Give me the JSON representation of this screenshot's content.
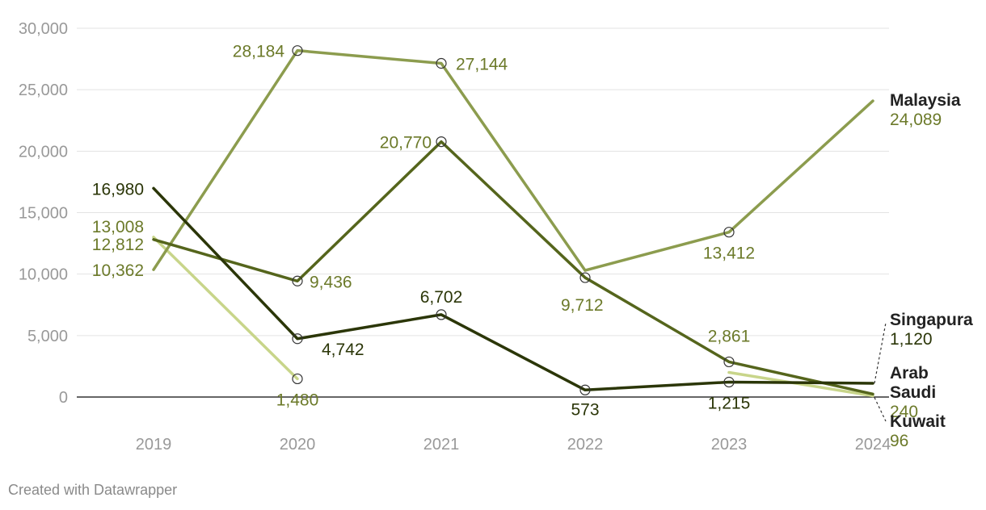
{
  "chart_data": {
    "type": "line",
    "x": [
      "2019",
      "2020",
      "2021",
      "2022",
      "2023",
      "2024"
    ],
    "ylim": [
      0,
      30000
    ],
    "yticks": [
      0,
      5000,
      10000,
      15000,
      20000,
      25000,
      30000
    ],
    "ytick_labels": [
      "0",
      "5,000",
      "10,000",
      "15,000",
      "20,000",
      "25,000",
      "30,000"
    ],
    "grid": true,
    "series": [
      {
        "name": "Malaysia",
        "end_label_lines": [
          "Malaysia"
        ],
        "end_value_label": "24,089",
        "color": "#8c9c4e",
        "values": [
          10362,
          28184,
          27144,
          10300,
          13412,
          24089
        ],
        "labels": [
          "10,362",
          "28,184",
          "27,144",
          null,
          "13,412",
          null
        ]
      },
      {
        "name": "Arab Saudi",
        "end_label_lines": [
          "Arab",
          "Saudi"
        ],
        "end_value_label": "240",
        "color": "#55651c",
        "values": [
          12812,
          9436,
          20770,
          9712,
          2861,
          240
        ],
        "labels": [
          "12,812",
          "9,436",
          "20,770",
          "9,712",
          "2,861",
          null
        ]
      },
      {
        "name": "Singapura",
        "end_label_lines": [
          "Singapura"
        ],
        "end_value_label": "1,120",
        "color": "#2b3608",
        "values": [
          16980,
          4742,
          6702,
          573,
          1215,
          1120
        ],
        "labels": [
          "16,980",
          "4,742",
          "6,702",
          "573",
          "1,215",
          null
        ]
      },
      {
        "name": "Kuwait",
        "end_label_lines": [
          "Kuwait"
        ],
        "end_value_label": "96",
        "color": "#c8d58a",
        "values": [
          13008,
          1480,
          null,
          null,
          2000,
          96
        ],
        "labels": [
          "13,008",
          "1,480",
          null,
          null,
          null,
          null
        ]
      }
    ]
  },
  "footer": {
    "credit": "Created with Datawrapper"
  }
}
